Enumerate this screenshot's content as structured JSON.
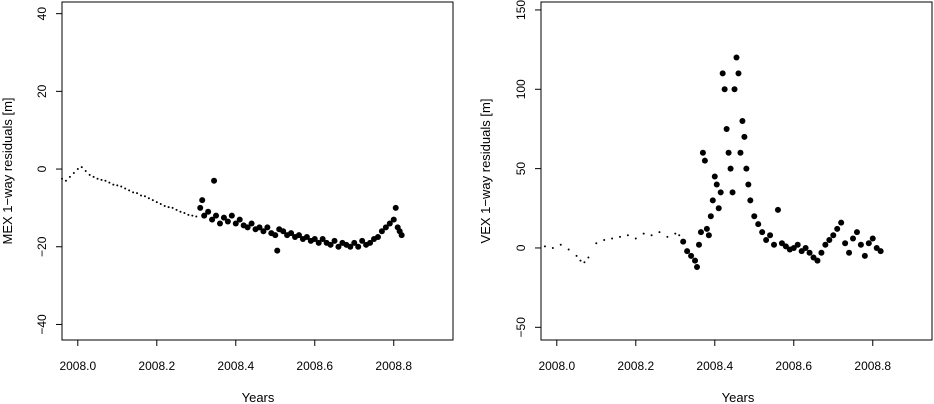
{
  "chart_data": [
    {
      "type": "scatter",
      "title": "",
      "xlabel": "Years",
      "ylabel": "MEX 1−way residuals [m]",
      "xlim": [
        1007.96,
        1008.95
      ],
      "ylim": [
        -44,
        43
      ],
      "xticks": [
        {
          "value": 1008.0,
          "label": "2008.0"
        },
        {
          "value": 1008.2,
          "label": "2008.2"
        },
        {
          "value": 1008.4,
          "label": "2008.4"
        },
        {
          "value": 1008.6,
          "label": "2008.6"
        },
        {
          "value": 1008.8,
          "label": "2008.8"
        }
      ],
      "yticks": [
        {
          "value": -40,
          "label": "−40"
        },
        {
          "value": -20,
          "label": "−20"
        },
        {
          "value": 0,
          "label": "0"
        },
        {
          "value": 20,
          "label": "20"
        },
        {
          "value": 40,
          "label": "40"
        }
      ],
      "grid": false,
      "legend": "none",
      "series": [
        {
          "marker": "small-dot",
          "points": [
            [
              1007.96,
              -2.5
            ],
            [
              1007.97,
              -3
            ],
            [
              1007.98,
              -2
            ],
            [
              1007.99,
              -1
            ],
            [
              1008.0,
              0
            ],
            [
              1008.01,
              0.5
            ],
            [
              1008.02,
              -0.5
            ],
            [
              1008.03,
              -1.5
            ],
            [
              1008.04,
              -2
            ],
            [
              1008.05,
              -2.5
            ],
            [
              1008.06,
              -2.8
            ],
            [
              1008.07,
              -3
            ],
            [
              1008.08,
              -3.5
            ],
            [
              1008.09,
              -4
            ],
            [
              1008.1,
              -4.2
            ],
            [
              1008.11,
              -4.5
            ],
            [
              1008.12,
              -5
            ],
            [
              1008.13,
              -5.5
            ],
            [
              1008.14,
              -6
            ],
            [
              1008.15,
              -6.2
            ],
            [
              1008.16,
              -6.8
            ],
            [
              1008.17,
              -7
            ],
            [
              1008.18,
              -7.5
            ],
            [
              1008.19,
              -8
            ],
            [
              1008.2,
              -8.5
            ],
            [
              1008.21,
              -9
            ],
            [
              1008.22,
              -9.5
            ],
            [
              1008.23,
              -9.8
            ],
            [
              1008.24,
              -10
            ],
            [
              1008.25,
              -10.5
            ],
            [
              1008.26,
              -11
            ],
            [
              1008.27,
              -11.3
            ],
            [
              1008.28,
              -11.8
            ],
            [
              1008.29,
              -12
            ],
            [
              1008.3,
              -12.2
            ]
          ]
        },
        {
          "marker": "large-dot",
          "points": [
            [
              1008.31,
              -10
            ],
            [
              1008.315,
              -8
            ],
            [
              1008.32,
              -12
            ],
            [
              1008.33,
              -11
            ],
            [
              1008.34,
              -13
            ],
            [
              1008.345,
              -3
            ],
            [
              1008.35,
              -12
            ],
            [
              1008.36,
              -14
            ],
            [
              1008.37,
              -12.5
            ],
            [
              1008.38,
              -13.5
            ],
            [
              1008.39,
              -12
            ],
            [
              1008.4,
              -14
            ],
            [
              1008.41,
              -13
            ],
            [
              1008.42,
              -14.5
            ],
            [
              1008.43,
              -15
            ],
            [
              1008.44,
              -14
            ],
            [
              1008.45,
              -15.5
            ],
            [
              1008.46,
              -15
            ],
            [
              1008.47,
              -16
            ],
            [
              1008.48,
              -15
            ],
            [
              1008.49,
              -16.5
            ],
            [
              1008.5,
              -17
            ],
            [
              1008.505,
              -21
            ],
            [
              1008.51,
              -15.5
            ],
            [
              1008.52,
              -16
            ],
            [
              1008.53,
              -17
            ],
            [
              1008.54,
              -16.5
            ],
            [
              1008.55,
              -17.5
            ],
            [
              1008.56,
              -17
            ],
            [
              1008.57,
              -18
            ],
            [
              1008.58,
              -17.5
            ],
            [
              1008.59,
              -18.5
            ],
            [
              1008.6,
              -18
            ],
            [
              1008.61,
              -19
            ],
            [
              1008.62,
              -18
            ],
            [
              1008.63,
              -19
            ],
            [
              1008.64,
              -19.5
            ],
            [
              1008.65,
              -18.5
            ],
            [
              1008.66,
              -20
            ],
            [
              1008.67,
              -19
            ],
            [
              1008.68,
              -19.5
            ],
            [
              1008.69,
              -20
            ],
            [
              1008.7,
              -19
            ],
            [
              1008.71,
              -20
            ],
            [
              1008.72,
              -18.5
            ],
            [
              1008.73,
              -19.5
            ],
            [
              1008.74,
              -19
            ],
            [
              1008.75,
              -18
            ],
            [
              1008.76,
              -17.5
            ],
            [
              1008.77,
              -16
            ],
            [
              1008.78,
              -15
            ],
            [
              1008.79,
              -14
            ],
            [
              1008.8,
              -13
            ],
            [
              1008.805,
              -10
            ],
            [
              1008.81,
              -15
            ],
            [
              1008.815,
              -16
            ],
            [
              1008.82,
              -17
            ]
          ]
        }
      ]
    },
    {
      "type": "scatter",
      "title": "",
      "xlabel": "Years",
      "ylabel": "VEX 1−way residuals [m]",
      "xlim": [
        1007.96,
        1008.95
      ],
      "ylim": [
        -58,
        155
      ],
      "xticks": [
        {
          "value": 1008.0,
          "label": "2008.0"
        },
        {
          "value": 1008.2,
          "label": "2008.2"
        },
        {
          "value": 1008.4,
          "label": "2008.4"
        },
        {
          "value": 1008.6,
          "label": "2008.6"
        },
        {
          "value": 1008.8,
          "label": "2008.8"
        }
      ],
      "yticks": [
        {
          "value": -50,
          "label": "−50"
        },
        {
          "value": 0,
          "label": "0"
        },
        {
          "value": 50,
          "label": "50"
        },
        {
          "value": 100,
          "label": "100"
        },
        {
          "value": 150,
          "label": "150"
        }
      ],
      "grid": false,
      "legend": "none",
      "series": [
        {
          "marker": "small-dot",
          "points": [
            [
              1007.97,
              1
            ],
            [
              1007.99,
              0
            ],
            [
              1008.01,
              2
            ],
            [
              1008.03,
              -1
            ],
            [
              1008.05,
              -5
            ],
            [
              1008.06,
              -8
            ],
            [
              1008.07,
              -9
            ],
            [
              1008.08,
              -6
            ],
            [
              1008.1,
              3
            ],
            [
              1008.12,
              5
            ],
            [
              1008.14,
              6
            ],
            [
              1008.16,
              7
            ],
            [
              1008.18,
              8
            ],
            [
              1008.2,
              6
            ],
            [
              1008.22,
              9
            ],
            [
              1008.24,
              8
            ],
            [
              1008.26,
              10
            ],
            [
              1008.28,
              7
            ],
            [
              1008.3,
              9
            ],
            [
              1008.31,
              8
            ]
          ]
        },
        {
          "marker": "large-dot",
          "points": [
            [
              1008.32,
              4
            ],
            [
              1008.33,
              -2
            ],
            [
              1008.34,
              -5
            ],
            [
              1008.35,
              -8
            ],
            [
              1008.355,
              -12
            ],
            [
              1008.36,
              2
            ],
            [
              1008.365,
              10
            ],
            [
              1008.37,
              60
            ],
            [
              1008.375,
              55
            ],
            [
              1008.38,
              12
            ],
            [
              1008.385,
              8
            ],
            [
              1008.39,
              20
            ],
            [
              1008.395,
              30
            ],
            [
              1008.4,
              45
            ],
            [
              1008.405,
              40
            ],
            [
              1008.41,
              25
            ],
            [
              1008.415,
              35
            ],
            [
              1008.42,
              110
            ],
            [
              1008.425,
              100
            ],
            [
              1008.43,
              75
            ],
            [
              1008.435,
              60
            ],
            [
              1008.44,
              50
            ],
            [
              1008.445,
              35
            ],
            [
              1008.45,
              100
            ],
            [
              1008.455,
              120
            ],
            [
              1008.46,
              110
            ],
            [
              1008.465,
              60
            ],
            [
              1008.47,
              80
            ],
            [
              1008.475,
              70
            ],
            [
              1008.48,
              50
            ],
            [
              1008.485,
              40
            ],
            [
              1008.49,
              30
            ],
            [
              1008.5,
              20
            ],
            [
              1008.51,
              15
            ],
            [
              1008.52,
              10
            ],
            [
              1008.53,
              5
            ],
            [
              1008.54,
              8
            ],
            [
              1008.55,
              2
            ],
            [
              1008.56,
              24
            ],
            [
              1008.57,
              3
            ],
            [
              1008.58,
              1
            ],
            [
              1008.59,
              -1
            ],
            [
              1008.6,
              0
            ],
            [
              1008.61,
              2
            ],
            [
              1008.62,
              -2
            ],
            [
              1008.63,
              0
            ],
            [
              1008.64,
              -3
            ],
            [
              1008.65,
              -6
            ],
            [
              1008.66,
              -8
            ],
            [
              1008.67,
              -3
            ],
            [
              1008.68,
              2
            ],
            [
              1008.69,
              5
            ],
            [
              1008.7,
              8
            ],
            [
              1008.71,
              12
            ],
            [
              1008.72,
              16
            ],
            [
              1008.73,
              3
            ],
            [
              1008.74,
              -3
            ],
            [
              1008.75,
              6
            ],
            [
              1008.76,
              10
            ],
            [
              1008.77,
              2
            ],
            [
              1008.78,
              -5
            ],
            [
              1008.79,
              3
            ],
            [
              1008.8,
              6
            ],
            [
              1008.81,
              0
            ],
            [
              1008.82,
              -2
            ]
          ]
        }
      ]
    }
  ]
}
